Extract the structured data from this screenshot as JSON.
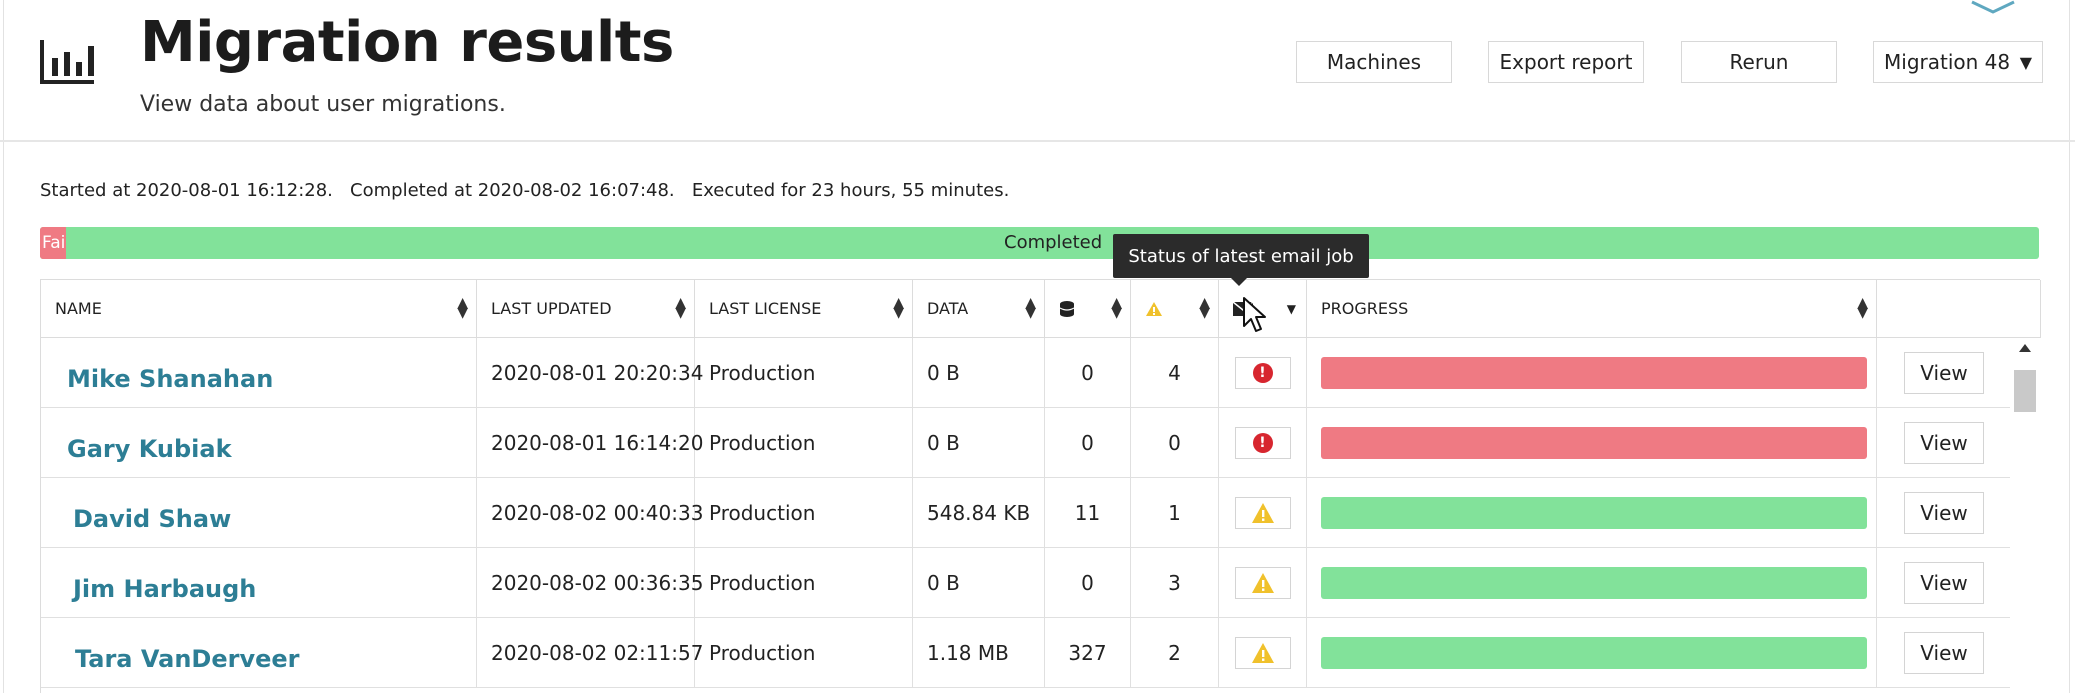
{
  "header": {
    "title": "Migration results",
    "subtitle": "View data about user migrations.",
    "buttons": {
      "machines": "Machines",
      "export": "Export report",
      "rerun": "Rerun"
    },
    "migration_select": {
      "value": "Migration 48",
      "arrow": "▼"
    },
    "logo_icon": "bar-chart-icon"
  },
  "run_info": "Started at 2020-08-01 16:12:28.   Completed at 2020-08-02 16:07:48.   Executed for 23 hours, 55 minutes.",
  "overall_status": {
    "failed_label": "Fai",
    "completed_label": "Completed",
    "failed_fraction": 0.013,
    "colors": {
      "failed": "#ef7a83",
      "completed": "#82e29a"
    }
  },
  "tooltip": "Status of latest email job",
  "table": {
    "columns": {
      "name": "NAME",
      "last_updated": "LAST UPDATED",
      "last_license": "LAST LICENSE",
      "data": "DATA",
      "items": "database-icon",
      "warnings": "warning-icon",
      "email_status": "email-icon",
      "progress": "PROGRESS"
    },
    "sort_glyph_up": "▲",
    "sort_glyph_down": "▼",
    "view_label": "View",
    "rows": [
      {
        "name": "Mike Shanahan",
        "last_updated": "2020-08-01 20:20:34",
        "license": "Production",
        "data": "0 B",
        "items": "0",
        "warnings": "4",
        "status": "error",
        "progress_color": "#ef7a83"
      },
      {
        "name": "Gary Kubiak",
        "last_updated": "2020-08-01 16:14:20",
        "license": "Production",
        "data": "0 B",
        "items": "0",
        "warnings": "0",
        "status": "error",
        "progress_color": "#ef7a83"
      },
      {
        "name": "David Shaw",
        "last_updated": "2020-08-02 00:40:33",
        "license": "Production",
        "data": "548.84 KB",
        "items": "11",
        "warnings": "1",
        "status": "warning",
        "progress_color": "#82e29a"
      },
      {
        "name": "Jim Harbaugh",
        "last_updated": "2020-08-02 00:36:35",
        "license": "Production",
        "data": "0 B",
        "items": "0",
        "warnings": "3",
        "status": "warning",
        "progress_color": "#82e29a"
      },
      {
        "name": "Tara VanDerveer",
        "last_updated": "2020-08-02 02:11:57",
        "license": "Production",
        "data": "1.18 MB",
        "items": "327",
        "warnings": "2",
        "status": "warning",
        "progress_color": "#82e29a"
      }
    ]
  }
}
